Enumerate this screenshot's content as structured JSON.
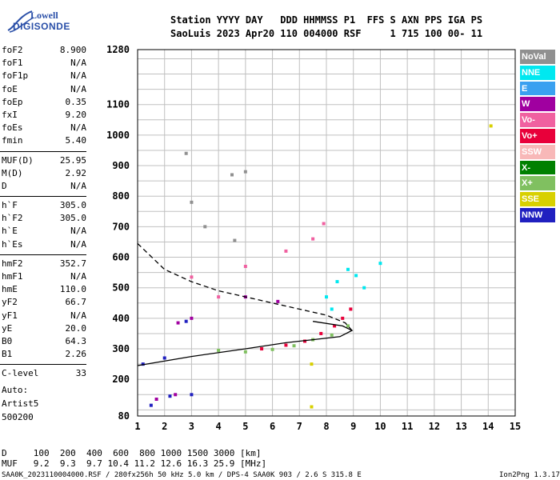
{
  "logo": {
    "line1": "Lowell",
    "line2": "DIGISONDE"
  },
  "header": {
    "row1": "Station YYYY DAY   DDD HHMMSS P1  FFS S AXN PPS IGA PS",
    "row2": "SaoLuis 2023 Apr20 110 004000 RSF     1 715 100 00- 11"
  },
  "params": [
    [
      {
        "label": "foF2",
        "value": "8.900"
      },
      {
        "label": "foF1",
        "value": "N/A"
      },
      {
        "label": "foF1p",
        "value": "N/A"
      },
      {
        "label": "foE",
        "value": "N/A"
      },
      {
        "label": "foEp",
        "value": "0.35"
      },
      {
        "label": "fxI",
        "value": "9.20"
      },
      {
        "label": "foEs",
        "value": "N/A"
      },
      {
        "label": "fmin",
        "value": "5.40"
      }
    ],
    [
      {
        "label": "MUF(D)",
        "value": "25.95"
      },
      {
        "label": "M(D)",
        "value": "2.92"
      },
      {
        "label": "D",
        "value": "N/A"
      }
    ],
    [
      {
        "label": "h`F",
        "value": "305.0"
      },
      {
        "label": "h`F2",
        "value": "305.0"
      },
      {
        "label": "h`E",
        "value": "N/A"
      },
      {
        "label": "h`Es",
        "value": "N/A"
      }
    ],
    [
      {
        "label": "hmF2",
        "value": "352.7"
      },
      {
        "label": "hmF1",
        "value": "N/A"
      },
      {
        "label": "hmE",
        "value": "110.0"
      },
      {
        "label": "yF2",
        "value": "66.7"
      },
      {
        "label": "yF1",
        "value": "N/A"
      },
      {
        "label": "yE",
        "value": "20.0"
      },
      {
        "label": "B0",
        "value": "64.3"
      },
      {
        "label": "B1",
        "value": "2.26"
      }
    ],
    [
      {
        "label": "C-level",
        "value": "33"
      }
    ]
  ],
  "auto": {
    "line1": "Auto:",
    "line2": "Artist5",
    "line3": "500200"
  },
  "legend": [
    {
      "label": "NoVal",
      "color": "#909090"
    },
    {
      "label": "NNE",
      "color": "#00e8f0"
    },
    {
      "label": "E",
      "color": "#3aa0f0"
    },
    {
      "label": "W",
      "color": "#a000a0"
    },
    {
      "label": "Vo-",
      "color": "#f060a0"
    },
    {
      "label": "Vo+",
      "color": "#e8003a"
    },
    {
      "label": "SSW",
      "color": "#f8b8b8"
    },
    {
      "label": "X-",
      "color": "#008000"
    },
    {
      "label": "X+",
      "color": "#80c060"
    },
    {
      "label": "SSE",
      "color": "#d8d000"
    },
    {
      "label": "NNW",
      "color": "#2020c0"
    }
  ],
  "distance_table": {
    "row1": "D     100  200  400  600  800 1000 1500 3000 [km]",
    "row2": "MUF   9.2  9.3  9.7 10.4 11.2 12.6 16.3 25.9 [MHz]"
  },
  "footer": {
    "left": "SAA0K_2023110004000.RSF / 280fx256h 50 kHz 5.0 km / DPS-4 SAA0K 903 / 2.6 S 315.8 E",
    "right": "Ion2Png 1.3.17"
  },
  "chart_data": {
    "type": "scatter",
    "xlim": [
      1,
      15
    ],
    "ylim": [
      80,
      1280
    ],
    "x_ticks": [
      1,
      2,
      3,
      4,
      5,
      6,
      7,
      8,
      9,
      10,
      11,
      12,
      13,
      14,
      15
    ],
    "y_ticks": [
      80,
      200,
      300,
      400,
      500,
      600,
      700,
      800,
      900,
      1000,
      1100,
      1280
    ],
    "grid": true,
    "series": [
      {
        "name": "X+",
        "values": [
          [
            4.0,
            295
          ],
          [
            5.0,
            290
          ],
          [
            6.0,
            298
          ],
          [
            6.8,
            310
          ],
          [
            7.5,
            330
          ],
          [
            8.2,
            345
          ],
          [
            8.8,
            375
          ]
        ]
      },
      {
        "name": "Vo+",
        "values": [
          [
            5.6,
            300
          ],
          [
            6.5,
            312
          ],
          [
            7.2,
            325
          ],
          [
            7.8,
            350
          ],
          [
            8.3,
            375
          ],
          [
            8.6,
            400
          ],
          [
            8.9,
            430
          ]
        ]
      },
      {
        "name": "NNE",
        "values": [
          [
            8.0,
            470
          ],
          [
            8.4,
            520
          ],
          [
            8.8,
            560
          ],
          [
            9.1,
            540
          ],
          [
            9.4,
            500
          ],
          [
            10.0,
            580
          ],
          [
            8.2,
            430
          ]
        ]
      },
      {
        "name": "W",
        "values": [
          [
            6.2,
            455
          ],
          [
            5.0,
            470
          ],
          [
            3.0,
            400
          ],
          [
            2.5,
            385
          ],
          [
            1.7,
            135
          ],
          [
            2.4,
            150
          ]
        ]
      },
      {
        "name": "Vo-",
        "values": [
          [
            3.0,
            535
          ],
          [
            5.0,
            570
          ],
          [
            6.5,
            620
          ],
          [
            7.5,
            660
          ],
          [
            7.9,
            710
          ],
          [
            4.0,
            470
          ]
        ]
      },
      {
        "name": "NNW",
        "values": [
          [
            1.5,
            115
          ],
          [
            2.2,
            145
          ],
          [
            3.0,
            150
          ],
          [
            2.0,
            270
          ],
          [
            2.8,
            390
          ],
          [
            1.2,
            250
          ]
        ]
      },
      {
        "name": "SSE",
        "values": [
          [
            7.45,
            250
          ],
          [
            7.45,
            110
          ],
          [
            14.1,
            1030
          ]
        ]
      },
      {
        "name": "NoVal",
        "values": [
          [
            3.0,
            780
          ],
          [
            4.5,
            870
          ],
          [
            5.0,
            880
          ],
          [
            2.8,
            940
          ],
          [
            3.5,
            700
          ],
          [
            4.6,
            655
          ]
        ]
      }
    ],
    "curves": [
      {
        "name": "solid",
        "values": [
          [
            1,
            245
          ],
          [
            3,
            275
          ],
          [
            5,
            300
          ],
          [
            6.5,
            320
          ],
          [
            7.5,
            330
          ],
          [
            8.5,
            340
          ],
          [
            8.95,
            360
          ],
          [
            8.6,
            375
          ],
          [
            7.5,
            390
          ]
        ]
      },
      {
        "name": "dashed",
        "values": [
          [
            1,
            645
          ],
          [
            2,
            560
          ],
          [
            3,
            520
          ],
          [
            4,
            490
          ],
          [
            5,
            470
          ],
          [
            6,
            450
          ],
          [
            7,
            430
          ],
          [
            8,
            410
          ],
          [
            8.7,
            385
          ],
          [
            8.95,
            360
          ]
        ]
      }
    ]
  }
}
